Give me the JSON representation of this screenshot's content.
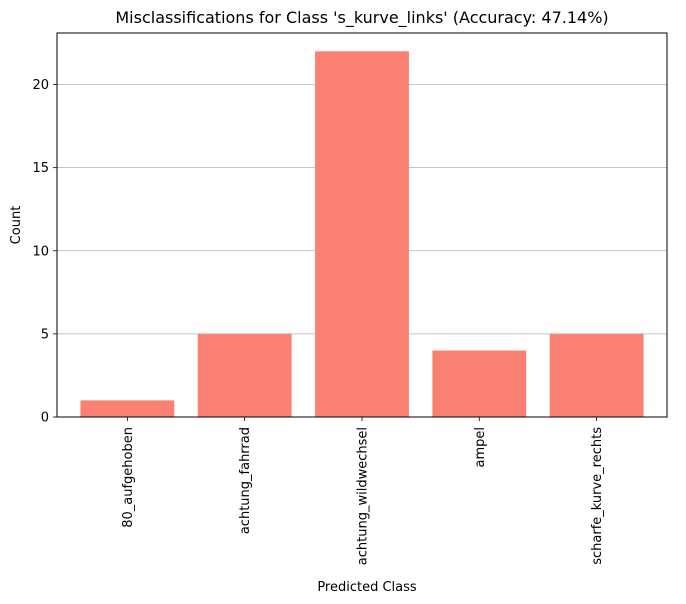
{
  "chart_data": {
    "type": "bar",
    "title": "Misclassifications for Class 's_kurve_links' (Accuracy: 47.14%)",
    "xlabel": "Predicted Class",
    "ylabel": "Count",
    "categories": [
      "80_aufgehoben",
      "achtung_fahrrad",
      "achtung_wildwechsel",
      "ampel",
      "scharfe_kurve_rechts"
    ],
    "values": [
      1,
      5,
      22,
      4,
      5
    ],
    "ylim": [
      0,
      23.1
    ],
    "yticks": [
      0,
      5,
      10,
      15,
      20
    ],
    "grid": "y-axis only",
    "legend": "none",
    "bar_color": "#fa8072",
    "grid_color": "#b0b0b0",
    "axis_color": "#000000"
  }
}
